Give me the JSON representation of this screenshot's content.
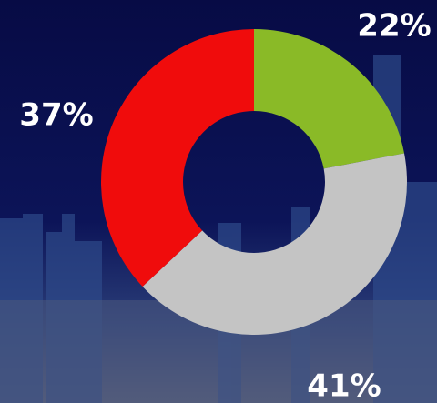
{
  "chart_data": {
    "type": "donut",
    "values": [
      22,
      41,
      37
    ],
    "value_labels": [
      "22%",
      "41%",
      "37%"
    ],
    "colors": [
      "#8aba27",
      "#c4c4c4",
      "#f00c0c"
    ]
  }
}
